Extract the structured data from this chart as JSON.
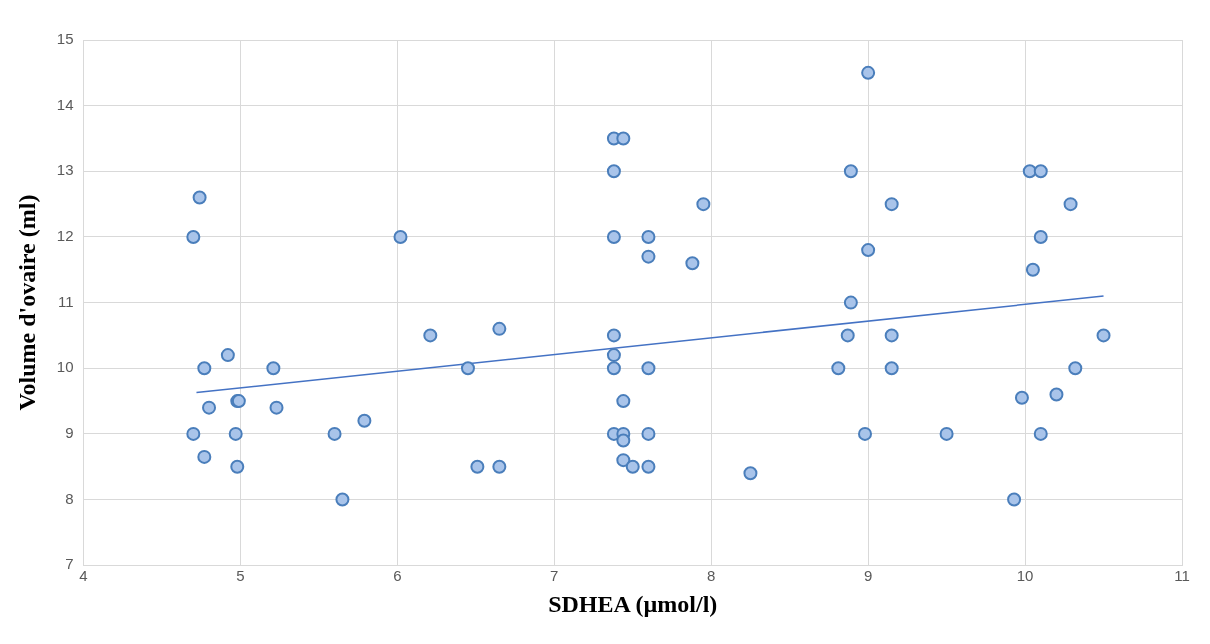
{
  "chart_data": {
    "type": "scatter",
    "xlabel": "SDHEA (µmol/l)",
    "ylabel": "Volume d'ovaire (ml)",
    "xlim": [
      4,
      11
    ],
    "xticks": [
      4,
      5,
      6,
      7,
      8,
      9,
      10,
      11
    ],
    "ylim": [
      7,
      15
    ],
    "yticks": [
      7,
      8,
      9,
      10,
      11,
      12,
      13,
      14,
      15
    ],
    "grid": true,
    "legend": false,
    "marker": "circle",
    "series": [
      {
        "color": "#a9c4ea",
        "x": [
          4.74,
          4.7,
          4.77,
          4.92,
          4.8,
          4.7,
          4.77,
          4.98,
          4.99,
          4.97,
          4.98,
          5.21,
          5.23,
          5.6,
          5.79,
          5.65,
          6.02,
          6.21,
          6.45,
          6.51,
          6.65,
          6.65,
          7.38,
          7.44,
          7.38,
          7.38,
          7.38,
          7.38,
          7.38,
          7.38,
          7.44,
          7.44,
          7.44,
          7.44,
          7.5,
          7.6,
          7.6,
          7.6,
          7.6,
          7.6,
          7.88,
          7.95,
          8.25,
          8.81,
          8.87,
          8.89,
          8.89,
          9.0,
          9.0,
          8.98,
          9.15,
          9.15,
          9.15,
          9.5,
          9.93,
          9.98,
          10.03,
          10.1,
          10.05,
          10.1,
          10.1,
          10.2,
          10.29,
          10.32,
          10.5
        ],
        "values": [
          12.6,
          12,
          10,
          10.2,
          9.4,
          9,
          8.65,
          9.5,
          9.5,
          9,
          8.5,
          10,
          9.4,
          9,
          9.2,
          8,
          12,
          10.5,
          10,
          8.5,
          10.6,
          8.5,
          13.5,
          13.5,
          13,
          12,
          10.5,
          10.2,
          10,
          9,
          9.5,
          9,
          8.9,
          8.6,
          8.5,
          12,
          11.7,
          10,
          9,
          8.5,
          11.6,
          12.5,
          8.4,
          10,
          10.5,
          11,
          13,
          14.5,
          11.8,
          9,
          12.5,
          10.5,
          10,
          9,
          8,
          9.55,
          13,
          13,
          11.5,
          12,
          9,
          9.6,
          12.5,
          10,
          10.5
        ]
      },
      {
        "type": "line",
        "color": "#4472c4",
        "marker": "none",
        "x": [
          4.72,
          10.5
        ],
        "values": [
          9.63,
          11.1
        ]
      }
    ]
  }
}
